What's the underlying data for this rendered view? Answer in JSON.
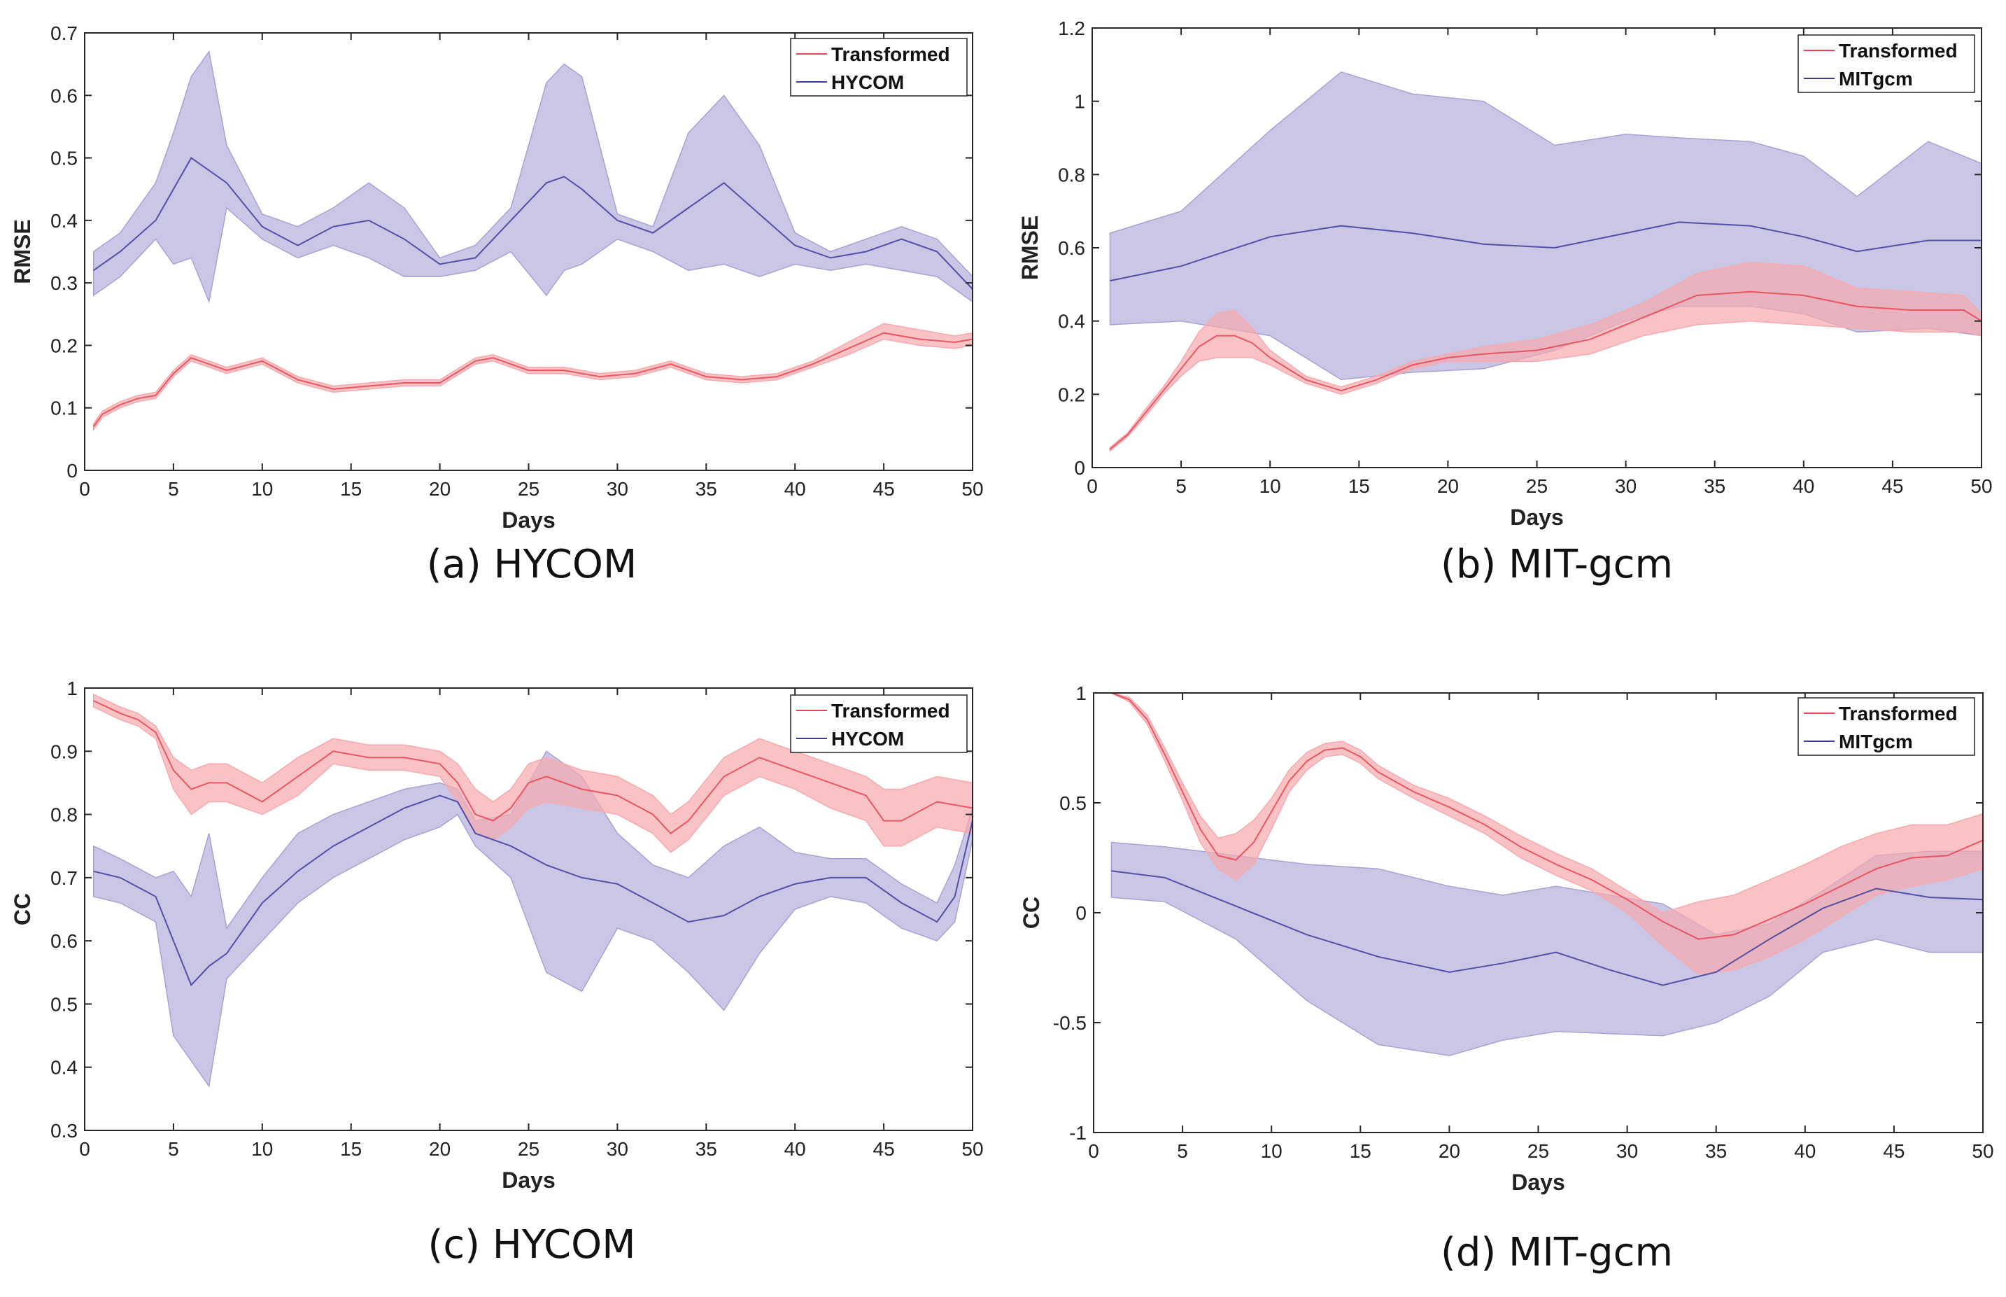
{
  "colors": {
    "transformed_line": "#e8434f",
    "transformed_band": "#f7a9ae",
    "model_line": "#3b3b9c",
    "model_band": "#a7a2d6"
  },
  "chart_data": [
    {
      "id": "a",
      "type": "line",
      "caption": "(a) HYCOM",
      "xlabel": "Days",
      "ylabel": "RMSE",
      "xlim": [
        0,
        50
      ],
      "ylim": [
        0,
        0.7
      ],
      "xticks": [
        0,
        5,
        10,
        15,
        20,
        25,
        30,
        35,
        40,
        45,
        50
      ],
      "yticks": [
        0,
        0.1,
        0.2,
        0.3,
        0.4,
        0.5,
        0.6,
        0.7
      ],
      "ytick_labels": [
        "0",
        "0.1",
        "0.2",
        "0.3",
        "0.4",
        "0.5",
        "0.6",
        "0.7"
      ],
      "legend": {
        "position": "top-right",
        "entries": [
          "Transformed",
          "HYCOM"
        ]
      },
      "series": [
        {
          "name": "HYCOM",
          "x": [
            0.5,
            2,
            4,
            5,
            6,
            7,
            8,
            10,
            12,
            14,
            16,
            18,
            20,
            22,
            24,
            26,
            27,
            28,
            30,
            32,
            34,
            36,
            38,
            40,
            42,
            44,
            46,
            48,
            50
          ],
          "mean": [
            0.32,
            0.35,
            0.4,
            0.45,
            0.5,
            0.48,
            0.46,
            0.39,
            0.36,
            0.39,
            0.4,
            0.37,
            0.33,
            0.34,
            0.4,
            0.46,
            0.47,
            0.45,
            0.4,
            0.38,
            0.42,
            0.46,
            0.41,
            0.36,
            0.34,
            0.35,
            0.37,
            0.35,
            0.29
          ],
          "upper": [
            0.35,
            0.38,
            0.46,
            0.54,
            0.63,
            0.67,
            0.52,
            0.41,
            0.39,
            0.42,
            0.46,
            0.42,
            0.34,
            0.36,
            0.42,
            0.62,
            0.65,
            0.63,
            0.41,
            0.39,
            0.54,
            0.6,
            0.52,
            0.38,
            0.35,
            0.37,
            0.39,
            0.37,
            0.31
          ],
          "lower": [
            0.28,
            0.31,
            0.37,
            0.33,
            0.34,
            0.27,
            0.42,
            0.37,
            0.34,
            0.36,
            0.34,
            0.31,
            0.31,
            0.32,
            0.35,
            0.28,
            0.32,
            0.33,
            0.37,
            0.35,
            0.32,
            0.33,
            0.31,
            0.33,
            0.32,
            0.33,
            0.32,
            0.31,
            0.27
          ]
        },
        {
          "name": "Transformed",
          "x": [
            0.5,
            1,
            2,
            3,
            4,
            5,
            6,
            7,
            8,
            10,
            12,
            14,
            16,
            18,
            20,
            22,
            23,
            25,
            27,
            29,
            31,
            33,
            35,
            37,
            39,
            41,
            43,
            45,
            47,
            49,
            50
          ],
          "mean": [
            0.07,
            0.09,
            0.105,
            0.115,
            0.12,
            0.155,
            0.18,
            0.17,
            0.16,
            0.175,
            0.145,
            0.13,
            0.135,
            0.14,
            0.14,
            0.175,
            0.18,
            0.16,
            0.16,
            0.15,
            0.155,
            0.17,
            0.15,
            0.145,
            0.15,
            0.17,
            0.195,
            0.22,
            0.21,
            0.205,
            0.21
          ],
          "upper": [
            0.075,
            0.095,
            0.11,
            0.12,
            0.125,
            0.16,
            0.185,
            0.175,
            0.165,
            0.18,
            0.15,
            0.135,
            0.14,
            0.145,
            0.145,
            0.18,
            0.185,
            0.165,
            0.165,
            0.155,
            0.16,
            0.175,
            0.155,
            0.15,
            0.155,
            0.175,
            0.205,
            0.235,
            0.225,
            0.215,
            0.22
          ],
          "lower": [
            0.065,
            0.085,
            0.1,
            0.11,
            0.115,
            0.15,
            0.175,
            0.165,
            0.155,
            0.17,
            0.14,
            0.125,
            0.13,
            0.135,
            0.135,
            0.17,
            0.175,
            0.155,
            0.155,
            0.145,
            0.15,
            0.165,
            0.145,
            0.14,
            0.145,
            0.165,
            0.185,
            0.21,
            0.2,
            0.195,
            0.2
          ]
        }
      ]
    },
    {
      "id": "b",
      "type": "line",
      "caption": "(b) MIT-gcm",
      "xlabel": "Days",
      "ylabel": "RMSE",
      "xlim": [
        0,
        50
      ],
      "ylim": [
        0,
        1.2
      ],
      "xticks": [
        0,
        5,
        10,
        15,
        20,
        25,
        30,
        35,
        40,
        45,
        50
      ],
      "yticks": [
        0,
        0.2,
        0.4,
        0.6,
        0.8,
        1,
        1.2
      ],
      "ytick_labels": [
        "0",
        "0.2",
        "0.4",
        "0.6",
        "0.8",
        "1",
        "1.2"
      ],
      "legend": {
        "position": "top-right",
        "entries": [
          "Transformed",
          "MITgcm"
        ]
      },
      "series": [
        {
          "name": "MITgcm",
          "x": [
            1,
            5,
            10,
            14,
            18,
            22,
            26,
            30,
            33,
            37,
            40,
            43,
            47,
            50
          ],
          "mean": [
            0.51,
            0.55,
            0.63,
            0.66,
            0.64,
            0.61,
            0.6,
            0.64,
            0.67,
            0.66,
            0.63,
            0.59,
            0.62,
            0.62
          ],
          "upper": [
            0.64,
            0.7,
            0.92,
            1.08,
            1.02,
            1.0,
            0.88,
            0.91,
            0.9,
            0.89,
            0.85,
            0.74,
            0.89,
            0.83
          ],
          "lower": [
            0.39,
            0.4,
            0.36,
            0.24,
            0.26,
            0.27,
            0.32,
            0.4,
            0.44,
            0.44,
            0.42,
            0.37,
            0.38,
            0.36
          ]
        },
        {
          "name": "Transformed",
          "x": [
            1,
            2,
            3,
            4,
            5,
            6,
            7,
            8,
            9,
            10,
            12,
            14,
            16,
            18,
            20,
            22,
            25,
            28,
            31,
            34,
            37,
            40,
            43,
            46,
            49,
            50
          ],
          "mean": [
            0.05,
            0.09,
            0.15,
            0.21,
            0.27,
            0.33,
            0.36,
            0.36,
            0.34,
            0.3,
            0.24,
            0.21,
            0.24,
            0.28,
            0.3,
            0.31,
            0.32,
            0.35,
            0.41,
            0.47,
            0.48,
            0.47,
            0.44,
            0.43,
            0.43,
            0.4
          ],
          "upper": [
            0.055,
            0.095,
            0.16,
            0.22,
            0.29,
            0.37,
            0.42,
            0.43,
            0.38,
            0.32,
            0.25,
            0.22,
            0.25,
            0.29,
            0.31,
            0.33,
            0.35,
            0.39,
            0.45,
            0.53,
            0.56,
            0.55,
            0.49,
            0.48,
            0.47,
            0.42
          ],
          "lower": [
            0.045,
            0.085,
            0.14,
            0.2,
            0.25,
            0.29,
            0.3,
            0.3,
            0.3,
            0.28,
            0.23,
            0.2,
            0.23,
            0.27,
            0.29,
            0.29,
            0.29,
            0.31,
            0.36,
            0.39,
            0.4,
            0.39,
            0.38,
            0.37,
            0.37,
            0.36
          ]
        }
      ]
    },
    {
      "id": "c",
      "type": "line",
      "caption": "(c) HYCOM",
      "xlabel": "Days",
      "ylabel": "CC",
      "xlim": [
        0,
        50
      ],
      "ylim": [
        0.3,
        1
      ],
      "xticks": [
        0,
        5,
        10,
        15,
        20,
        25,
        30,
        35,
        40,
        45,
        50
      ],
      "yticks": [
        0.3,
        0.4,
        0.5,
        0.6,
        0.7,
        0.8,
        0.9,
        1
      ],
      "ytick_labels": [
        "0.3",
        "0.4",
        "0.5",
        "0.6",
        "0.7",
        "0.8",
        "0.9",
        "1"
      ],
      "legend": {
        "position": "top-right",
        "entries": [
          "Transformed",
          "HYCOM"
        ]
      },
      "series": [
        {
          "name": "HYCOM",
          "x": [
            0.5,
            2,
            4,
            5,
            6,
            7,
            8,
            10,
            12,
            14,
            16,
            18,
            20,
            21,
            22,
            24,
            26,
            28,
            30,
            32,
            34,
            36,
            38,
            40,
            42,
            44,
            46,
            48,
            49,
            50
          ],
          "mean": [
            0.71,
            0.7,
            0.67,
            0.6,
            0.53,
            0.56,
            0.58,
            0.66,
            0.71,
            0.75,
            0.78,
            0.81,
            0.83,
            0.82,
            0.77,
            0.75,
            0.72,
            0.7,
            0.69,
            0.66,
            0.63,
            0.64,
            0.67,
            0.69,
            0.7,
            0.7,
            0.66,
            0.63,
            0.67,
            0.79
          ],
          "upper": [
            0.75,
            0.73,
            0.7,
            0.71,
            0.67,
            0.77,
            0.62,
            0.7,
            0.77,
            0.8,
            0.82,
            0.84,
            0.85,
            0.84,
            0.79,
            0.8,
            0.9,
            0.86,
            0.77,
            0.72,
            0.7,
            0.75,
            0.78,
            0.74,
            0.73,
            0.73,
            0.69,
            0.66,
            0.72,
            0.81
          ],
          "lower": [
            0.67,
            0.66,
            0.63,
            0.45,
            0.41,
            0.37,
            0.54,
            0.6,
            0.66,
            0.7,
            0.73,
            0.76,
            0.78,
            0.8,
            0.75,
            0.7,
            0.55,
            0.52,
            0.62,
            0.6,
            0.55,
            0.49,
            0.58,
            0.65,
            0.67,
            0.66,
            0.62,
            0.6,
            0.63,
            0.76
          ]
        },
        {
          "name": "Transformed",
          "x": [
            0.5,
            2,
            3,
            4,
            5,
            6,
            7,
            8,
            10,
            12,
            14,
            16,
            18,
            20,
            21,
            22,
            23,
            24,
            25,
            26,
            28,
            30,
            32,
            33,
            34,
            36,
            38,
            40,
            42,
            44,
            45,
            46,
            48,
            50
          ],
          "mean": [
            0.98,
            0.96,
            0.95,
            0.93,
            0.87,
            0.84,
            0.85,
            0.85,
            0.82,
            0.86,
            0.9,
            0.89,
            0.89,
            0.88,
            0.85,
            0.8,
            0.79,
            0.81,
            0.85,
            0.86,
            0.84,
            0.83,
            0.8,
            0.77,
            0.79,
            0.86,
            0.89,
            0.87,
            0.85,
            0.83,
            0.79,
            0.79,
            0.82,
            0.81
          ],
          "upper": [
            0.99,
            0.97,
            0.96,
            0.94,
            0.89,
            0.87,
            0.88,
            0.88,
            0.85,
            0.89,
            0.92,
            0.91,
            0.91,
            0.9,
            0.88,
            0.84,
            0.82,
            0.84,
            0.88,
            0.89,
            0.87,
            0.86,
            0.83,
            0.8,
            0.82,
            0.89,
            0.92,
            0.9,
            0.88,
            0.86,
            0.84,
            0.84,
            0.86,
            0.85
          ],
          "lower": [
            0.97,
            0.95,
            0.94,
            0.92,
            0.84,
            0.8,
            0.82,
            0.82,
            0.8,
            0.83,
            0.88,
            0.87,
            0.87,
            0.86,
            0.82,
            0.77,
            0.76,
            0.78,
            0.81,
            0.82,
            0.81,
            0.8,
            0.77,
            0.74,
            0.76,
            0.83,
            0.86,
            0.84,
            0.81,
            0.79,
            0.75,
            0.75,
            0.78,
            0.77
          ]
        }
      ]
    },
    {
      "id": "d",
      "type": "line",
      "caption": "(d) MIT-gcm",
      "xlabel": "Days",
      "ylabel": "CC",
      "xlim": [
        0,
        50
      ],
      "ylim": [
        -1,
        1
      ],
      "xticks": [
        0,
        5,
        10,
        15,
        20,
        25,
        30,
        35,
        40,
        45,
        50
      ],
      "yticks": [
        -1,
        -0.5,
        0,
        0.5,
        1
      ],
      "ytick_labels": [
        "-1",
        "-0.5",
        "0",
        "0.5",
        "1"
      ],
      "legend": {
        "position": "top-right",
        "entries": [
          "Transformed",
          "MITgcm"
        ]
      },
      "series": [
        {
          "name": "MITgcm",
          "x": [
            1,
            4,
            8,
            12,
            16,
            20,
            23,
            26,
            29,
            32,
            35,
            38,
            41,
            44,
            47,
            50
          ],
          "mean": [
            0.19,
            0.16,
            0.03,
            -0.1,
            -0.2,
            -0.27,
            -0.23,
            -0.18,
            -0.26,
            -0.33,
            -0.27,
            -0.12,
            0.02,
            0.11,
            0.07,
            0.06
          ],
          "upper": [
            0.32,
            0.3,
            0.26,
            0.22,
            0.2,
            0.12,
            0.08,
            0.12,
            0.08,
            0.04,
            -0.1,
            -0.05,
            0.1,
            0.26,
            0.28,
            0.28
          ],
          "lower": [
            0.07,
            0.05,
            -0.12,
            -0.4,
            -0.6,
            -0.65,
            -0.58,
            -0.54,
            -0.55,
            -0.56,
            -0.5,
            -0.38,
            -0.18,
            -0.12,
            -0.18,
            -0.18
          ]
        },
        {
          "name": "Transformed",
          "x": [
            1,
            2,
            3,
            4,
            5,
            6,
            7,
            8,
            9,
            10,
            11,
            12,
            13,
            14,
            15,
            16,
            18,
            20,
            22,
            24,
            26,
            28,
            30,
            32,
            34,
            36,
            38,
            40,
            42,
            44,
            46,
            48,
            50
          ],
          "mean": [
            1.0,
            0.97,
            0.88,
            0.72,
            0.55,
            0.38,
            0.26,
            0.24,
            0.32,
            0.46,
            0.6,
            0.69,
            0.74,
            0.75,
            0.71,
            0.64,
            0.55,
            0.48,
            0.4,
            0.3,
            0.22,
            0.15,
            0.06,
            -0.04,
            -0.12,
            -0.1,
            -0.03,
            0.04,
            0.12,
            0.2,
            0.25,
            0.26,
            0.33
          ],
          "upper": [
            1.0,
            0.98,
            0.9,
            0.75,
            0.59,
            0.44,
            0.34,
            0.36,
            0.42,
            0.52,
            0.65,
            0.73,
            0.77,
            0.78,
            0.74,
            0.67,
            0.58,
            0.52,
            0.44,
            0.35,
            0.27,
            0.2,
            0.1,
            0.0,
            0.05,
            0.08,
            0.15,
            0.22,
            0.3,
            0.36,
            0.4,
            0.4,
            0.45
          ],
          "lower": [
            1.0,
            0.96,
            0.86,
            0.69,
            0.51,
            0.32,
            0.2,
            0.15,
            0.22,
            0.38,
            0.55,
            0.65,
            0.71,
            0.72,
            0.68,
            0.61,
            0.52,
            0.44,
            0.36,
            0.25,
            0.17,
            0.1,
            0.0,
            -0.15,
            -0.28,
            -0.26,
            -0.2,
            -0.12,
            -0.02,
            0.08,
            0.12,
            0.15,
            0.2
          ]
        }
      ]
    }
  ]
}
